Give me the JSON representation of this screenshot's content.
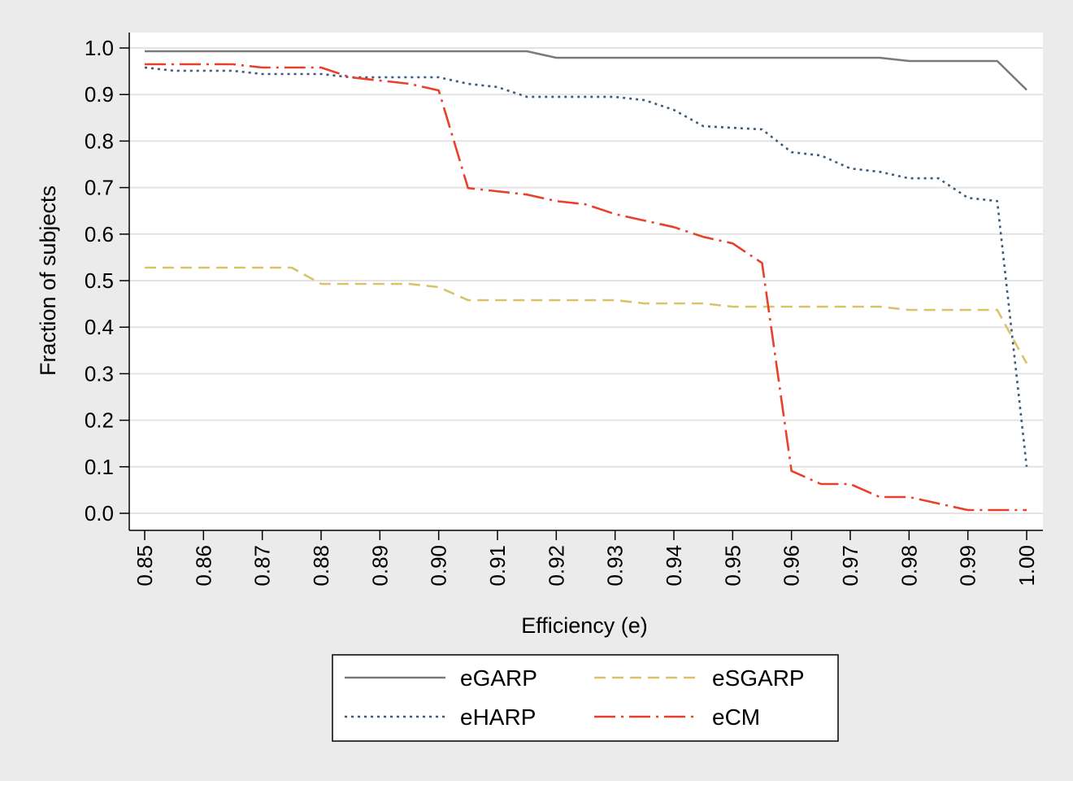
{
  "chart_data": {
    "type": "line",
    "title": "",
    "xlabel": "Efficiency (e)",
    "ylabel": "Fraction of subjects",
    "xlim": [
      0.85,
      1.0
    ],
    "ylim": [
      0.0,
      1.0
    ],
    "x_ticks": [
      "0.85",
      "0.86",
      "0.87",
      "0.88",
      "0.89",
      "0.90",
      "0.91",
      "0.92",
      "0.93",
      "0.94",
      "0.95",
      "0.96",
      "0.97",
      "0.98",
      "0.99",
      "1.00"
    ],
    "y_ticks": [
      "0.0",
      "0.1",
      "0.2",
      "0.3",
      "0.4",
      "0.5",
      "0.6",
      "0.7",
      "0.8",
      "0.9",
      "1.0"
    ],
    "grid": "horizontal",
    "legend": "bottom",
    "series": [
      {
        "name": "eGARP",
        "color": "#7a7a7a",
        "style": "solid",
        "x": [
          0.85,
          0.915,
          0.92,
          0.975,
          0.98,
          0.995,
          1.0
        ],
        "y": [
          0.993,
          0.993,
          0.979,
          0.979,
          0.972,
          0.972,
          0.91
        ]
      },
      {
        "name": "eSGARP",
        "color": "#d9c36a",
        "style": "dashed",
        "x": [
          0.85,
          0.875,
          0.88,
          0.895,
          0.9,
          0.905,
          0.93,
          0.935,
          0.945,
          0.95,
          0.975,
          0.98,
          0.995,
          1.0
        ],
        "y": [
          0.528,
          0.528,
          0.493,
          0.493,
          0.486,
          0.458,
          0.458,
          0.451,
          0.451,
          0.444,
          0.444,
          0.437,
          0.437,
          0.322
        ]
      },
      {
        "name": "eHARP",
        "color": "#3d5a78",
        "style": "dotted",
        "x": [
          0.85,
          0.855,
          0.865,
          0.87,
          0.88,
          0.885,
          0.9,
          0.905,
          0.91,
          0.915,
          0.93,
          0.935,
          0.94,
          0.945,
          0.955,
          0.96,
          0.965,
          0.97,
          0.975,
          0.98,
          0.985,
          0.99,
          0.995,
          1.0
        ],
        "y": [
          0.958,
          0.951,
          0.951,
          0.944,
          0.944,
          0.937,
          0.937,
          0.923,
          0.916,
          0.895,
          0.895,
          0.888,
          0.867,
          0.832,
          0.825,
          0.776,
          0.769,
          0.741,
          0.734,
          0.72,
          0.72,
          0.678,
          0.671,
          0.1
        ]
      },
      {
        "name": "eCM",
        "color": "#e8402a",
        "style": "dashdot",
        "x": [
          0.85,
          0.865,
          0.87,
          0.88,
          0.885,
          0.895,
          0.9,
          0.905,
          0.915,
          0.92,
          0.925,
          0.93,
          0.94,
          0.945,
          0.95,
          0.955,
          0.96,
          0.965,
          0.97,
          0.975,
          0.98,
          0.99,
          1.0
        ],
        "y": [
          0.965,
          0.965,
          0.958,
          0.958,
          0.937,
          0.923,
          0.909,
          0.699,
          0.685,
          0.671,
          0.664,
          0.643,
          0.615,
          0.594,
          0.58,
          0.538,
          0.091,
          0.063,
          0.063,
          0.035,
          0.035,
          0.007,
          0.007
        ]
      }
    ],
    "legend_order": [
      "eGARP",
      "eSGARP",
      "eHARP",
      "eCM"
    ]
  }
}
